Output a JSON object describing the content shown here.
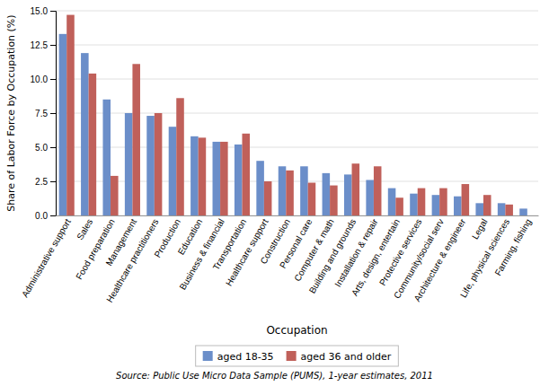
{
  "chart_data": {
    "type": "bar",
    "xlabel": "Occupation",
    "ylabel": "Share of Labor Force by Occupation (%)",
    "annotations": [
      "Source: Public Use Micro Data Sample (PUMS), 1-year estimates, 2011"
    ],
    "categories": [
      "Administrative support",
      "Sales",
      "Food preparation",
      "Management",
      "Healthcare practitioners",
      "Production",
      "Education",
      "Business & financial",
      "Transportation",
      "Healthcare support",
      "Construction",
      "Personal care",
      "Computer & math",
      "Building and grounds",
      "Installation & repair",
      "Arts, design, entertain",
      "Protective services",
      "Community/social serv",
      "Architecture & engineer",
      "Legal",
      "Life, physical sciences",
      "Farming, fishing"
    ],
    "series": [
      {
        "name": "aged 18-35",
        "color": "#6B8EC9",
        "values": [
          13.3,
          11.9,
          8.5,
          7.5,
          7.3,
          6.5,
          5.8,
          5.4,
          5.2,
          4.0,
          3.6,
          3.6,
          3.1,
          3.0,
          2.6,
          2.0,
          1.6,
          1.5,
          1.4,
          0.9,
          0.9,
          0.5
        ]
      },
      {
        "name": "aged 36 and older",
        "color": "#C0605A",
        "values": [
          14.7,
          10.4,
          2.9,
          11.1,
          7.5,
          8.6,
          5.7,
          5.4,
          6.0,
          2.5,
          3.3,
          2.4,
          2.2,
          3.8,
          3.6,
          1.3,
          2.0,
          2.0,
          2.3,
          1.5,
          0.8,
          0.0
        ]
      }
    ],
    "ylim": [
      0,
      15.0
    ],
    "yticks": [
      {
        "value": 0.0,
        "label": "0.0"
      },
      2.5,
      {
        "value": 5.0,
        "label": "5.0"
      },
      7.5,
      {
        "value": 10.0,
        "label": "10.0"
      },
      12.5,
      {
        "value": 15.0,
        "label": "15.0"
      }
    ],
    "grid": true,
    "legend": "bottom"
  }
}
